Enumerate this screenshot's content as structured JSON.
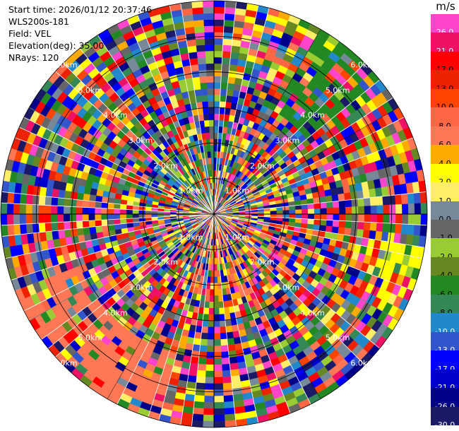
{
  "header": {
    "start_time": "Start time: 2026/01/12 20:37:46",
    "instrument": "WLS200s-181",
    "field": "Field: VEL",
    "elevation": "Elevation(deg): 35.00",
    "nrays": "NRays: 120"
  },
  "colorbar": {
    "unit": "m/s",
    "ticks": [
      "26.0",
      "21.0",
      "17.0",
      "13.0",
      "10.0",
      "8.0",
      "6.0",
      "4.0",
      "2.0",
      "1.0",
      "0.0",
      "-1.0",
      "-2.0",
      "-4.0",
      "-6.0",
      "-8.0",
      "-10.0",
      "-13.0",
      "-17.0",
      "-21.0",
      "-26.0",
      "-30.0"
    ],
    "colors": [
      "#ff44cc",
      "#ee1166",
      "#ff0000",
      "#ee2200",
      "#ff4400",
      "#ff6644",
      "#ff7755",
      "#ffaa00",
      "#ffff00",
      "#ffee66",
      "#778899",
      "#666666",
      "#99cc33",
      "#668822",
      "#228822",
      "#338855",
      "#2288cc",
      "#3355cc",
      "#0000ff",
      "#0000cc",
      "#000088",
      "#1a1a66"
    ]
  },
  "chart_data": {
    "type": "ppi-radar",
    "field": "VEL",
    "units": "m/s",
    "elevation_deg": 35.0,
    "n_rays": 120,
    "range_rings": [
      {
        "label": "1.0km"
      },
      {
        "label": "2.0km"
      },
      {
        "label": "3.0km"
      },
      {
        "label": "4.0km"
      },
      {
        "label": "5.0km"
      },
      {
        "label": "6.0km"
      }
    ]
  }
}
